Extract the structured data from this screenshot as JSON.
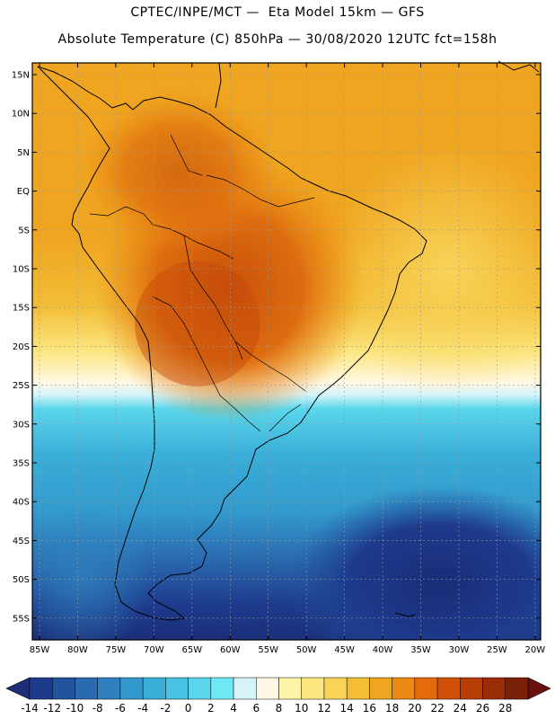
{
  "header": {
    "line1": "CPTEC/INPE/MCT —  Eta Model 15km — GFS",
    "line2": "Absolute Temperature (C) 850hPa — 30/08/2020 12UTC fct=158h"
  },
  "map": {
    "lat_labels": [
      "15N",
      "10N",
      "5N",
      "EQ",
      "5S",
      "10S",
      "15S",
      "20S",
      "25S",
      "30S",
      "35S",
      "40S",
      "45S",
      "50S",
      "55S"
    ],
    "lon_labels": [
      "85W",
      "80W",
      "75W",
      "70W",
      "65W",
      "60W",
      "55W",
      "50W",
      "45W",
      "40W",
      "35W",
      "30W",
      "25W",
      "20W"
    ]
  },
  "colorbar": {
    "labels": [
      "-14",
      "-12",
      "-10",
      "-8",
      "-6",
      "-4",
      "-2",
      "0",
      "2",
      "4",
      "6",
      "8",
      "10",
      "12",
      "14",
      "16",
      "18",
      "20",
      "22",
      "24",
      "26",
      "28"
    ],
    "colors": [
      "#1e3a8c",
      "#22539e",
      "#2a6aaf",
      "#2f80bf",
      "#3399cc",
      "#3aaed8",
      "#48c2e2",
      "#5ad6ec",
      "#6ee8f4",
      "#d4f4fa",
      "#fff8e6",
      "#fff5a8",
      "#fbe680",
      "#f8d358",
      "#f3bd36",
      "#efa51f",
      "#ea8a12",
      "#e36b0c",
      "#d2510a",
      "#b83e08",
      "#9a2c08",
      "#7a2008"
    ],
    "low_color": "#1b2f7a",
    "high_color": "#6a1010"
  }
}
